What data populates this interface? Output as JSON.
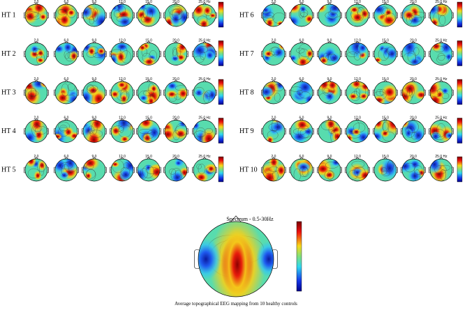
{
  "panels": [
    {
      "label": "HT 1"
    },
    {
      "label": "HT 2"
    },
    {
      "label": "HT 3"
    },
    {
      "label": "HT 4"
    },
    {
      "label": "HT 5"
    },
    {
      "label": "HT 6"
    },
    {
      "label": "HT 7"
    },
    {
      "label": "HT 8"
    },
    {
      "label": "HT 9"
    },
    {
      "label": "HT 10"
    }
  ],
  "frequency_labels": [
    "2.0",
    "6.0",
    "9.0",
    "12.0",
    "15.0",
    "20.0",
    "25.0 Hz"
  ],
  "average_map": {
    "title": "Spectrum - 0.5-30Hz",
    "caption": "Average topographical EEG mapping from 10 healthy controls"
  }
}
